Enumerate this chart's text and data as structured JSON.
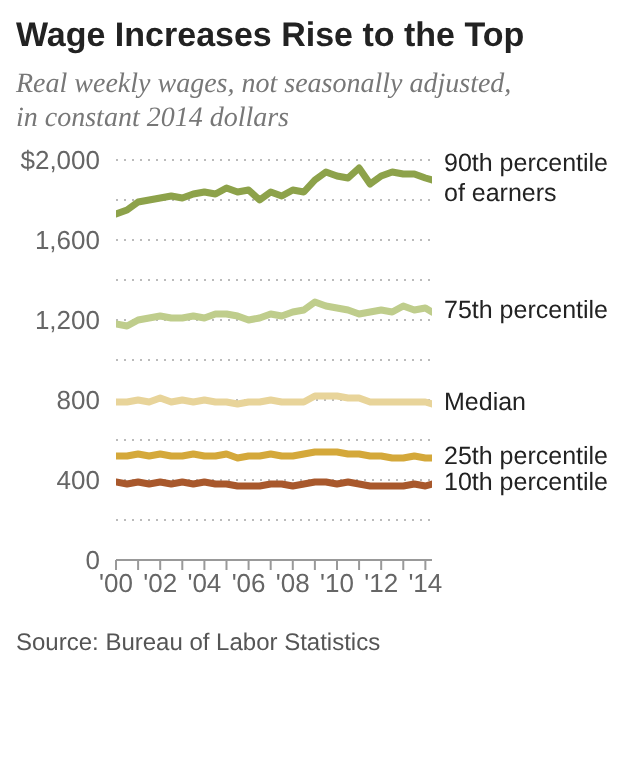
{
  "chart_data": {
    "type": "line",
    "title": "Wage Increases Rise to the Top",
    "subtitle": "Real weekly wages, not seasonally adjusted, in constant 2014 dollars",
    "annotations": [
      "Source: Bureau of Labor Statistics"
    ],
    "x": [
      2000,
      2000.5,
      2001,
      2001.5,
      2002,
      2002.5,
      2003,
      2003.5,
      2004,
      2004.5,
      2005,
      2005.5,
      2006,
      2006.5,
      2007,
      2007.5,
      2008,
      2008.5,
      2009,
      2009.5,
      2010,
      2010.5,
      2011,
      2011.5,
      2012,
      2012.5,
      2013,
      2013.5,
      2014,
      2014.3
    ],
    "series": [
      {
        "name": "90th percentile of earners",
        "color": "#8da24a",
        "values": [
          1730,
          1750,
          1790,
          1800,
          1810,
          1820,
          1810,
          1830,
          1840,
          1830,
          1860,
          1840,
          1850,
          1800,
          1840,
          1820,
          1850,
          1840,
          1900,
          1940,
          1920,
          1910,
          1960,
          1880,
          1920,
          1940,
          1930,
          1930,
          1910,
          1900
        ]
      },
      {
        "name": "75th percentile",
        "color": "#bfcd8c",
        "values": [
          1180,
          1170,
          1200,
          1210,
          1220,
          1210,
          1210,
          1220,
          1210,
          1230,
          1230,
          1220,
          1200,
          1210,
          1230,
          1220,
          1240,
          1250,
          1290,
          1270,
          1260,
          1250,
          1230,
          1240,
          1250,
          1240,
          1270,
          1250,
          1260,
          1240
        ]
      },
      {
        "name": "Median",
        "color": "#e8d49a",
        "values": [
          790,
          790,
          800,
          790,
          810,
          790,
          800,
          790,
          800,
          790,
          790,
          780,
          790,
          790,
          800,
          790,
          790,
          790,
          820,
          820,
          820,
          810,
          810,
          790,
          790,
          790,
          790,
          790,
          790,
          780
        ]
      },
      {
        "name": "25th percentile",
        "color": "#d4a83a",
        "values": [
          520,
          520,
          530,
          520,
          530,
          520,
          520,
          530,
          520,
          520,
          530,
          510,
          520,
          520,
          530,
          520,
          520,
          530,
          540,
          540,
          540,
          530,
          530,
          520,
          520,
          510,
          510,
          520,
          510,
          510
        ]
      },
      {
        "name": "10th percentile",
        "color": "#a8582c",
        "values": [
          390,
          380,
          390,
          380,
          390,
          380,
          390,
          380,
          390,
          380,
          380,
          370,
          370,
          370,
          380,
          380,
          370,
          380,
          390,
          390,
          380,
          390,
          380,
          370,
          370,
          370,
          370,
          380,
          370,
          380
        ]
      }
    ],
    "xlim": [
      2000,
      2014.3
    ],
    "xticks": [
      {
        "value": 2000,
        "label": "'00"
      },
      {
        "value": 2001,
        "label": null
      },
      {
        "value": 2002,
        "label": "'02"
      },
      {
        "value": 2003,
        "label": null
      },
      {
        "value": 2004,
        "label": "'04"
      },
      {
        "value": 2005,
        "label": null
      },
      {
        "value": 2006,
        "label": "'06"
      },
      {
        "value": 2007,
        "label": null
      },
      {
        "value": 2008,
        "label": "'08"
      },
      {
        "value": 2009,
        "label": null
      },
      {
        "value": 2010,
        "label": "'10"
      },
      {
        "value": 2011,
        "label": null
      },
      {
        "value": 2012,
        "label": "'12"
      },
      {
        "value": 2013,
        "label": null
      },
      {
        "value": 2014,
        "label": "'14"
      }
    ],
    "ylim": [
      0,
      2000
    ],
    "yticks": [
      0,
      {
        "value": 200,
        "label": null
      },
      400,
      {
        "value": 600,
        "label": null
      },
      {
        "value": 800,
        "label": "800"
      },
      {
        "value": 1000,
        "label": null
      },
      {
        "value": 1200,
        "label": "1,200"
      },
      {
        "value": 1400,
        "label": null
      },
      {
        "value": 1600,
        "label": "1,600"
      },
      {
        "value": 1800,
        "label": null
      },
      {
        "value": 2000,
        "label": "$2,000"
      }
    ],
    "grid": "y",
    "legend": false,
    "marker": "none",
    "line_style": "solid"
  }
}
